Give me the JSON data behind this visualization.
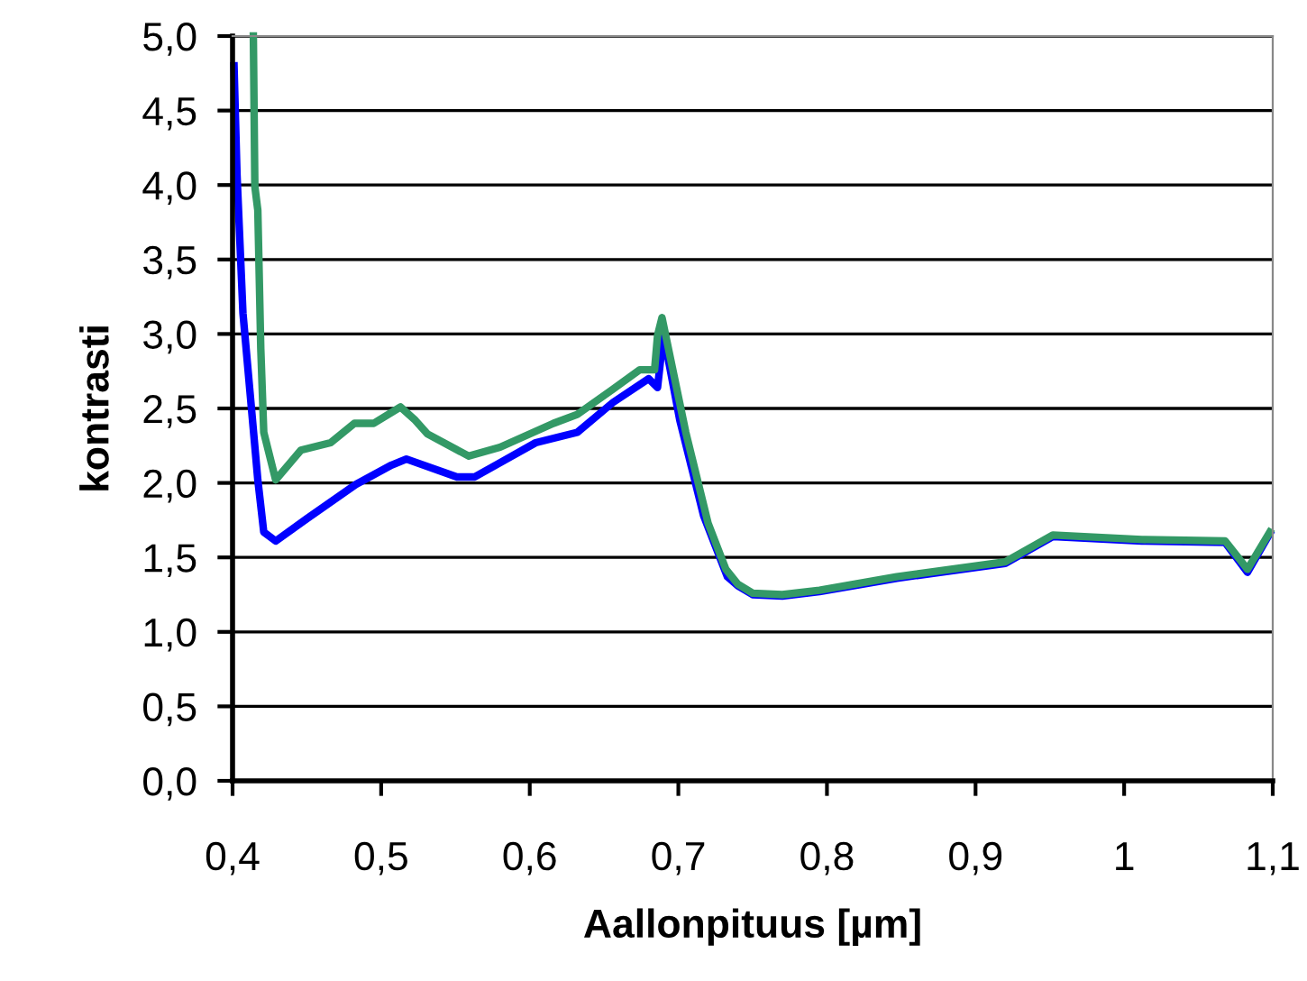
{
  "chart_data": {
    "type": "line",
    "xlabel": "Aallonpituus [µm]",
    "ylabel": "kontrasti",
    "xlim": [
      0.4,
      1.1
    ],
    "ylim": [
      0,
      5
    ],
    "xticks": [
      {
        "value": 0.4,
        "label": "0,4"
      },
      {
        "value": 0.5,
        "label": "0,5"
      },
      {
        "value": 0.6,
        "label": "0,6"
      },
      {
        "value": 0.7,
        "label": "0,7"
      },
      {
        "value": 0.8,
        "label": "0,8"
      },
      {
        "value": 0.9,
        "label": "0,9"
      },
      {
        "value": 1,
        "label": "1"
      },
      {
        "value": 1.1,
        "label": "1,1"
      }
    ],
    "yticks": [
      {
        "value": 0,
        "label": "0,0"
      },
      {
        "value": 0.5,
        "label": "0,5"
      },
      {
        "value": 1,
        "label": "1,0"
      },
      {
        "value": 1.5,
        "label": "1,5"
      },
      {
        "value": 2,
        "label": "2,0"
      },
      {
        "value": 2.5,
        "label": "2,5"
      },
      {
        "value": 3,
        "label": "3,0"
      },
      {
        "value": 3.5,
        "label": "3,5"
      },
      {
        "value": 4,
        "label": "4,0"
      },
      {
        "value": 4.5,
        "label": "4,5"
      },
      {
        "value": 5,
        "label": "5,0"
      }
    ],
    "grid": "y",
    "legend": false,
    "marker": "none",
    "line_style": "solid",
    "series": [
      {
        "color": "#0000ff",
        "x": [
          0.401,
          0.403,
          0.407,
          0.417,
          0.421,
          0.429,
          0.45,
          0.483,
          0.507,
          0.517,
          0.551,
          0.563,
          0.604,
          0.632,
          0.656,
          0.68,
          0.686,
          0.69,
          0.701,
          0.717,
          0.733,
          0.74,
          0.75,
          0.77,
          0.795,
          0.847,
          0.92,
          0.952,
          1.012,
          1.068,
          1.083,
          1.098
        ],
        "values": [
          4.8,
          4.07,
          3.14,
          2.02,
          1.67,
          1.61,
          1.76,
          1.99,
          2.12,
          2.16,
          2.04,
          2.04,
          2.27,
          2.34,
          2.54,
          2.7,
          2.64,
          3.0,
          2.42,
          1.78,
          1.37,
          1.31,
          1.25,
          1.24,
          1.27,
          1.36,
          1.46,
          1.64,
          1.61,
          1.6,
          1.4,
          1.66
        ]
      },
      {
        "color": "#339966",
        "x": [
          0.414,
          0.415,
          0.417,
          0.419,
          0.421,
          0.429,
          0.446,
          0.466,
          0.482,
          0.495,
          0.513,
          0.523,
          0.531,
          0.559,
          0.58,
          0.616,
          0.632,
          0.656,
          0.674,
          0.684,
          0.686,
          0.689,
          0.705,
          0.72,
          0.732,
          0.74,
          0.75,
          0.77,
          0.795,
          0.847,
          0.92,
          0.952,
          1.012,
          1.068,
          1.083,
          1.098
        ],
        "values": [
          5.0,
          3.99,
          3.83,
          2.9,
          2.34,
          2.02,
          2.22,
          2.27,
          2.4,
          2.4,
          2.51,
          2.42,
          2.33,
          2.18,
          2.24,
          2.4,
          2.46,
          2.63,
          2.76,
          2.76,
          2.99,
          3.11,
          2.34,
          1.73,
          1.42,
          1.32,
          1.26,
          1.25,
          1.28,
          1.37,
          1.47,
          1.65,
          1.62,
          1.61,
          1.42,
          1.67
        ]
      }
    ]
  }
}
